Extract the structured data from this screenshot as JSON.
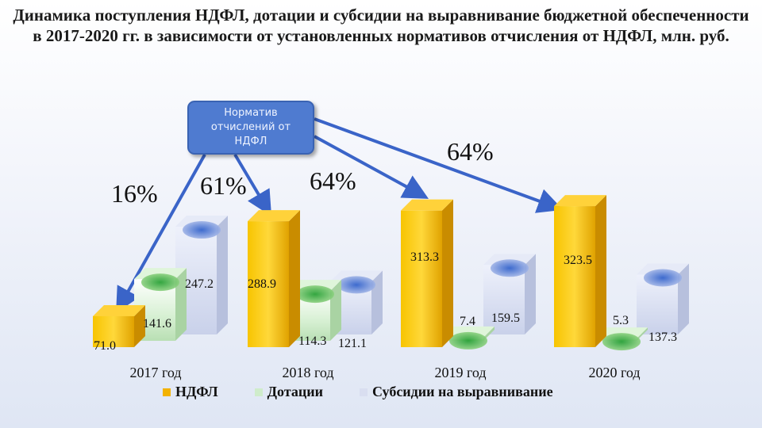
{
  "title": "Динамика поступления НДФЛ, дотации и субсидии на выравнивание бюджетной обеспеченности в 2017-2020 гг. в зависимости от установленных нормативов отчисления от НДФЛ, млн. руб.",
  "callout": {
    "text": "Норматив отчислений от НДФЛ"
  },
  "percent_labels": [
    "16%",
    "61%",
    "64%",
    "64%"
  ],
  "colors": {
    "ndfl": "#f2b200",
    "dotacii": "#cfeccb",
    "subsidii": "#d9def0",
    "arrow": "#3a64c8"
  },
  "chart_data": {
    "type": "bar",
    "categories": [
      "2017 год",
      "2018 год",
      "2019 год",
      "2020 год"
    ],
    "series": [
      {
        "name": "НДФЛ",
        "values": [
          71.0,
          288.9,
          313.3,
          323.5
        ]
      },
      {
        "name": "Дотации",
        "values": [
          141.6,
          114.3,
          7.4,
          5.3
        ]
      },
      {
        "name": "Субсидии на выравнивание",
        "values": [
          247.2,
          121.1,
          159.5,
          137.3
        ]
      }
    ],
    "value_labels": [
      [
        "71.0",
        "288.9",
        "313.3",
        "323.5"
      ],
      [
        "141.6",
        "114.3",
        "7.4",
        "5.3"
      ],
      [
        "247.2",
        "121.1",
        "159.5",
        "137.3"
      ]
    ],
    "percent_labels": [
      "16%",
      "61%",
      "64%",
      "64%"
    ],
    "legend_position": "bottom",
    "grid": false
  }
}
